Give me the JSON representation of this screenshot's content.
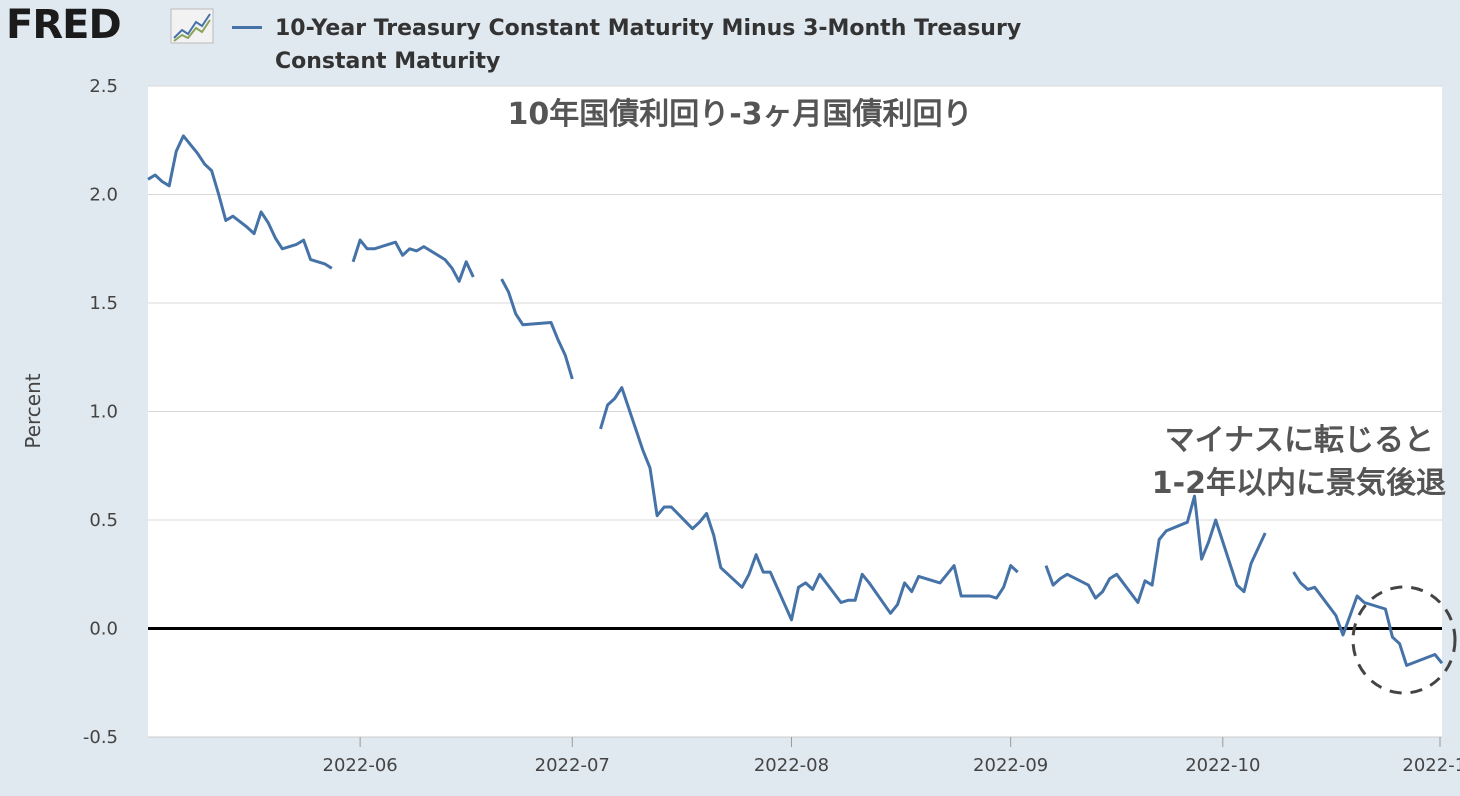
{
  "header": {
    "logo_text": "FRED",
    "logo_icon": "chart-trend-icon"
  },
  "legend": {
    "series_name": "10-Year Treasury Constant Maturity Minus 3-Month Treasury Constant Maturity",
    "color": "#4572a7"
  },
  "annotations": {
    "title": "10年国債利回り-3ヶ月国債利回り",
    "note_line1": "マイナスに転じると",
    "note_line2": "1-2年以内に景気後退"
  },
  "colors": {
    "background": "#e1e9f0",
    "plot": "#ffffff",
    "series": "#4572a7",
    "zero_line": "#000000"
  },
  "chart_data": {
    "type": "line",
    "ylabel": "Percent",
    "ylim": [
      -0.5,
      2.5
    ],
    "yticks": [
      -0.5,
      0.0,
      0.5,
      1.0,
      1.5,
      2.0,
      2.5
    ],
    "yticklabels": [
      "-0.5",
      "0.0",
      "0.5",
      "1.0",
      "1.5",
      "2.0",
      "2.5"
    ],
    "xlim": [
      "2022-05-02",
      "2022-11-01"
    ],
    "xticks": [
      "2022-06-01",
      "2022-07-01",
      "2022-08-01",
      "2022-09-01",
      "2022-10-01",
      "2022-11-01"
    ],
    "xticklabels": [
      "2022-06",
      "2022-07",
      "2022-08",
      "2022-09",
      "2022-10",
      "2022-11"
    ],
    "grid": true,
    "reference_line": 0,
    "series": [
      {
        "name": "10-Year Treasury Constant Maturity Minus 3-Month Treasury Constant Maturity",
        "segments": [
          [
            [
              "2022-05-02",
              2.07
            ],
            [
              "2022-05-03",
              2.09
            ],
            [
              "2022-05-04",
              2.06
            ],
            [
              "2022-05-05",
              2.04
            ],
            [
              "2022-05-06",
              2.2
            ],
            [
              "2022-05-07",
              2.27
            ],
            [
              "2022-05-08",
              2.23
            ],
            [
              "2022-05-09",
              2.19
            ],
            [
              "2022-05-10",
              2.14
            ],
            [
              "2022-05-11",
              2.11
            ],
            [
              "2022-05-12",
              2.0
            ],
            [
              "2022-05-13",
              1.88
            ],
            [
              "2022-05-14",
              1.9
            ],
            [
              "2022-05-16",
              1.85
            ],
            [
              "2022-05-17",
              1.82
            ],
            [
              "2022-05-18",
              1.92
            ],
            [
              "2022-05-19",
              1.87
            ],
            [
              "2022-05-20",
              1.8
            ],
            [
              "2022-05-21",
              1.75
            ],
            [
              "2022-05-23",
              1.77
            ],
            [
              "2022-05-24",
              1.79
            ],
            [
              "2022-05-25",
              1.7
            ],
            [
              "2022-05-27",
              1.68
            ],
            [
              "2022-05-28",
              1.66
            ]
          ],
          [
            [
              "2022-05-31",
              1.69
            ],
            [
              "2022-06-01",
              1.79
            ],
            [
              "2022-06-02",
              1.75
            ],
            [
              "2022-06-03",
              1.75
            ],
            [
              "2022-06-06",
              1.78
            ],
            [
              "2022-06-07",
              1.72
            ],
            [
              "2022-06-08",
              1.75
            ],
            [
              "2022-06-09",
              1.74
            ],
            [
              "2022-06-10",
              1.76
            ],
            [
              "2022-06-13",
              1.7
            ],
            [
              "2022-06-14",
              1.66
            ],
            [
              "2022-06-15",
              1.6
            ],
            [
              "2022-06-16",
              1.69
            ],
            [
              "2022-06-17",
              1.62
            ]
          ],
          [
            [
              "2022-06-21",
              1.61
            ],
            [
              "2022-06-22",
              1.55
            ],
            [
              "2022-06-23",
              1.45
            ],
            [
              "2022-06-24",
              1.4
            ],
            [
              "2022-06-28",
              1.41
            ],
            [
              "2022-06-29",
              1.33
            ],
            [
              "2022-06-30",
              1.26
            ],
            [
              "2022-07-01",
              1.15
            ]
          ],
          [
            [
              "2022-07-05",
              0.92
            ],
            [
              "2022-07-06",
              1.03
            ],
            [
              "2022-07-07",
              1.06
            ],
            [
              "2022-07-08",
              1.11
            ],
            [
              "2022-07-11",
              0.82
            ],
            [
              "2022-07-12",
              0.74
            ],
            [
              "2022-07-13",
              0.52
            ],
            [
              "2022-07-14",
              0.56
            ],
            [
              "2022-07-15",
              0.56
            ],
            [
              "2022-07-18",
              0.46
            ],
            [
              "2022-07-19",
              0.49
            ],
            [
              "2022-07-20",
              0.53
            ],
            [
              "2022-07-21",
              0.43
            ],
            [
              "2022-07-22",
              0.28
            ],
            [
              "2022-07-25",
              0.19
            ],
            [
              "2022-07-26",
              0.25
            ],
            [
              "2022-07-27",
              0.34
            ],
            [
              "2022-07-28",
              0.26
            ],
            [
              "2022-07-29",
              0.26
            ],
            [
              "2022-08-01",
              0.04
            ],
            [
              "2022-08-02",
              0.19
            ],
            [
              "2022-08-03",
              0.21
            ],
            [
              "2022-08-04",
              0.18
            ],
            [
              "2022-08-05",
              0.25
            ],
            [
              "2022-08-08",
              0.12
            ],
            [
              "2022-08-09",
              0.13
            ],
            [
              "2022-08-10",
              0.13
            ],
            [
              "2022-08-11",
              0.25
            ],
            [
              "2022-08-12",
              0.21
            ],
            [
              "2022-08-15",
              0.07
            ],
            [
              "2022-08-16",
              0.11
            ],
            [
              "2022-08-17",
              0.21
            ],
            [
              "2022-08-18",
              0.17
            ],
            [
              "2022-08-19",
              0.24
            ],
            [
              "2022-08-22",
              0.21
            ],
            [
              "2022-08-23",
              0.25
            ],
            [
              "2022-08-24",
              0.29
            ],
            [
              "2022-08-25",
              0.15
            ],
            [
              "2022-08-26",
              0.15
            ],
            [
              "2022-08-29",
              0.15
            ],
            [
              "2022-08-30",
              0.14
            ],
            [
              "2022-08-31",
              0.19
            ],
            [
              "2022-09-01",
              0.29
            ],
            [
              "2022-09-02",
              0.26
            ]
          ],
          [
            [
              "2022-09-06",
              0.29
            ],
            [
              "2022-09-07",
              0.2
            ],
            [
              "2022-09-08",
              0.23
            ],
            [
              "2022-09-09",
              0.25
            ],
            [
              "2022-09-12",
              0.2
            ],
            [
              "2022-09-13",
              0.14
            ],
            [
              "2022-09-14",
              0.17
            ],
            [
              "2022-09-15",
              0.23
            ],
            [
              "2022-09-16",
              0.25
            ],
            [
              "2022-09-19",
              0.12
            ],
            [
              "2022-09-20",
              0.22
            ],
            [
              "2022-09-21",
              0.2
            ],
            [
              "2022-09-22",
              0.41
            ],
            [
              "2022-09-23",
              0.45
            ],
            [
              "2022-09-26",
              0.49
            ],
            [
              "2022-09-27",
              0.61
            ],
            [
              "2022-09-28",
              0.32
            ],
            [
              "2022-09-29",
              0.4
            ],
            [
              "2022-09-30",
              0.5
            ],
            [
              "2022-10-03",
              0.2
            ],
            [
              "2022-10-04",
              0.17
            ],
            [
              "2022-10-05",
              0.3
            ],
            [
              "2022-10-07",
              0.44
            ]
          ],
          [
            [
              "2022-10-11",
              0.26
            ],
            [
              "2022-10-12",
              0.21
            ],
            [
              "2022-10-13",
              0.18
            ],
            [
              "2022-10-14",
              0.19
            ],
            [
              "2022-10-17",
              0.06
            ],
            [
              "2022-10-18",
              -0.03
            ],
            [
              "2022-10-19",
              0.06
            ],
            [
              "2022-10-20",
              0.15
            ],
            [
              "2022-10-21",
              0.12
            ],
            [
              "2022-10-24",
              0.09
            ],
            [
              "2022-10-25",
              -0.04
            ],
            [
              "2022-10-26",
              -0.07
            ],
            [
              "2022-10-27",
              -0.17
            ],
            [
              "2022-10-31",
              -0.12
            ],
            [
              "2022-11-01",
              -0.16
            ]
          ]
        ]
      }
    ]
  }
}
